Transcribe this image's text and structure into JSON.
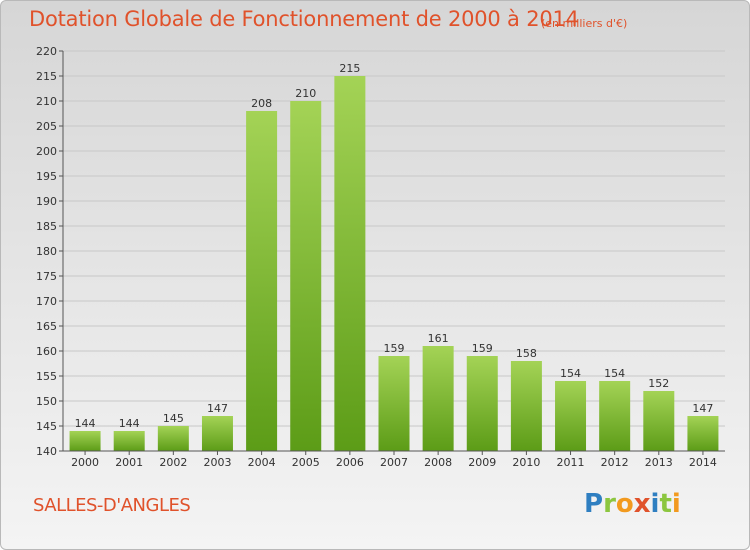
{
  "header": {
    "title": "Dotation Globale de Fonctionnement de 2000 à 2014",
    "unit": "(en milliers d'€)"
  },
  "footer": {
    "commune": "SALLES-D'ANGLES",
    "logo_letters": [
      {
        "ch": "P",
        "color": "#2f7fc1"
      },
      {
        "ch": "r",
        "color": "#8cc63f"
      },
      {
        "ch": "o",
        "color": "#f29a1f"
      },
      {
        "ch": "x",
        "color": "#e0522b"
      },
      {
        "ch": "i",
        "color": "#2f7fc1"
      },
      {
        "ch": "t",
        "color": "#8cc63f"
      },
      {
        "ch": "i",
        "color": "#f29a1f"
      }
    ]
  },
  "colors": {
    "title": "#e0522b",
    "bar_light": "#a4d356",
    "bar_dark": "#5c9c17",
    "grid": "#c8c8c8"
  },
  "chart_data": {
    "type": "bar",
    "title": "Dotation Globale de Fonctionnement de 2000 à 2014",
    "xlabel": "",
    "ylabel": "",
    "categories": [
      "2000",
      "2001",
      "2002",
      "2003",
      "2004",
      "2005",
      "2006",
      "2007",
      "2008",
      "2009",
      "2010",
      "2011",
      "2012",
      "2013",
      "2014"
    ],
    "values": [
      144,
      144,
      145,
      147,
      208,
      210,
      215,
      159,
      161,
      159,
      158,
      154,
      154,
      152,
      147
    ],
    "ylim": [
      140,
      220
    ],
    "yticks": [
      140,
      145,
      150,
      155,
      160,
      165,
      170,
      175,
      180,
      185,
      190,
      195,
      200,
      205,
      210,
      215,
      220
    ],
    "grid": true,
    "legend": "none"
  }
}
